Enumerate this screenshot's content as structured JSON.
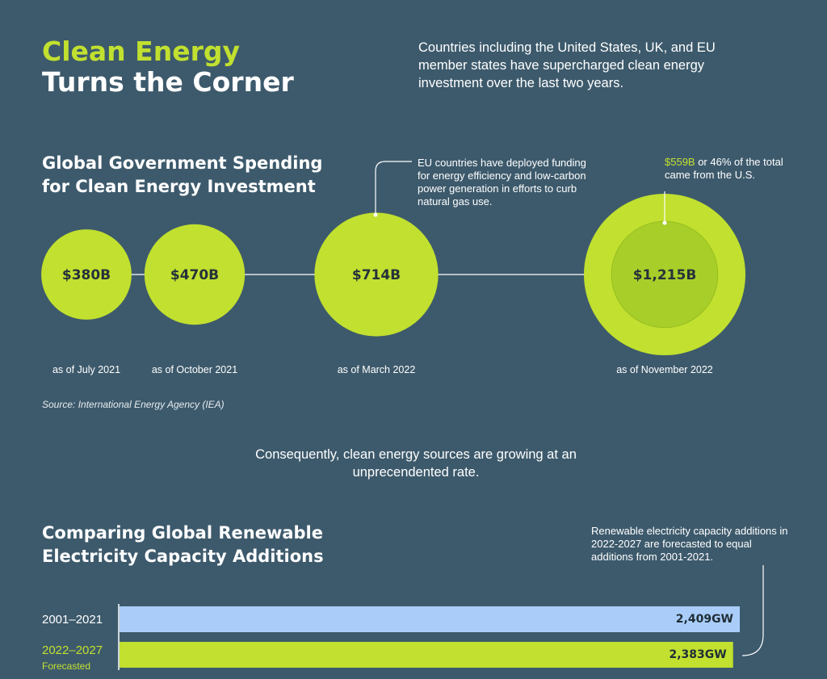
{
  "header": {
    "title_line1": "Clean Energy",
    "title_line2": "Turns the Corner",
    "intro": "Countries including the United States, UK, and EU member states have supercharged clean energy investment over the last two years."
  },
  "section1": {
    "title": "Global Government Spending for Clean Energy Investment",
    "annotation_eu": "EU countries have deployed funding for energy efficiency and low-carbon power generation in efforts to curb natural gas use.",
    "annotation_us_highlight": "$559B",
    "annotation_us_rest": " or 46% of the total came from the U.S.",
    "source": "Source: International Energy Agency (IEA)"
  },
  "transition_text": "Consequently, clean energy sources are growing at an unprecendented rate.",
  "section2": {
    "title": "Comparing Global Renewable Electricity Capacity Additions",
    "annotation": "Renewable electricity capacity additions in 2022-2027 are forecasted to equal additions from 2001-2021.",
    "forecast_note": "Forecasted"
  },
  "colors": {
    "background": "#3d5a6c",
    "accent_green": "#c1e02f",
    "inner_green": "#a8cf29",
    "bar_blue": "#a9cdf8",
    "value_text": "#26323a"
  },
  "chart_data": [
    {
      "type": "bubble",
      "title": "Global Government Spending for Clean Energy Investment",
      "unit": "USD billions",
      "categories": [
        "as of July 2021",
        "as of October 2021",
        "as of March 2022",
        "as of November 2022"
      ],
      "values": [
        380,
        470,
        714,
        1215
      ],
      "labels": [
        "$380B",
        "$470B",
        "$714B",
        "$1,215B"
      ],
      "sub_value": {
        "category": "as of November 2022",
        "value": 559,
        "share_percent": 46,
        "name": "U.S."
      }
    },
    {
      "type": "bar",
      "orientation": "horizontal",
      "title": "Comparing Global Renewable Electricity Capacity Additions",
      "unit": "GW",
      "categories": [
        "2001–2021",
        "2022–2027"
      ],
      "values": [
        2409,
        2383
      ],
      "labels": [
        "2,409GW",
        "2,383GW"
      ],
      "colors": [
        "#a9cdf8",
        "#c1e02f"
      ]
    }
  ]
}
